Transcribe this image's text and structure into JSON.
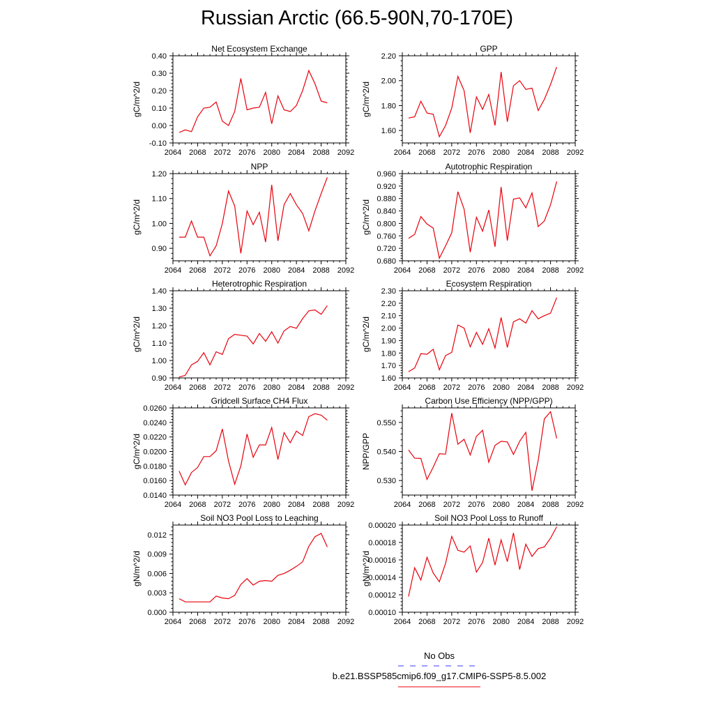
{
  "title": "Russian Arctic (66.5-90N,70-170E)",
  "colors": {
    "model": "#e8000b",
    "obs": "#3a3aff",
    "axis": "#000000"
  },
  "legend": {
    "obs_label": "No Obs",
    "model_label": "b.e21.BSSP585cmip6.f09_g17.CMIP6-SSP5-8.5.002"
  },
  "chart_data": [
    {
      "type": "line",
      "title": "Net Ecosystem Exchange",
      "xlabel": "",
      "ylabel": "gC/m^2/d",
      "xlim": [
        2064,
        2092
      ],
      "xticks": [
        2064,
        2068,
        2072,
        2076,
        2080,
        2084,
        2088,
        2092
      ],
      "xtick_labels": [
        "2064",
        "2068",
        "2072",
        "2076",
        "2080",
        "2084",
        "2088",
        "2092"
      ],
      "ylim": [
        -0.1,
        0.4
      ],
      "yticks": [
        -0.1,
        0.0,
        0.1,
        0.2,
        0.3,
        0.4
      ],
      "ytick_labels": [
        "-0.10",
        "0.00",
        "0.10",
        "0.20",
        "0.30",
        "0.40"
      ],
      "x": [
        2065,
        2066,
        2067,
        2068,
        2069,
        2070,
        2071,
        2072,
        2073,
        2074,
        2075,
        2076,
        2077,
        2078,
        2079,
        2080,
        2081,
        2082,
        2083,
        2084,
        2085,
        2086,
        2087,
        2088,
        2089
      ],
      "y": [
        -0.04,
        -0.025,
        -0.035,
        0.05,
        0.1,
        0.105,
        0.135,
        0.025,
        0.0,
        0.08,
        0.27,
        0.09,
        0.1,
        0.105,
        0.19,
        0.01,
        0.17,
        0.09,
        0.08,
        0.115,
        0.2,
        0.315,
        0.24,
        0.14,
        0.13
      ]
    },
    {
      "type": "line",
      "title": "GPP",
      "xlabel": "",
      "ylabel": "gC/m^2/d",
      "xlim": [
        2064,
        2092
      ],
      "xticks": [
        2064,
        2068,
        2072,
        2076,
        2080,
        2084,
        2088,
        2092
      ],
      "xtick_labels": [
        "2064",
        "2068",
        "2072",
        "2076",
        "2080",
        "2084",
        "2088",
        "2092"
      ],
      "ylim": [
        1.5,
        2.2
      ],
      "yticks": [
        1.6,
        1.8,
        2.0,
        2.2
      ],
      "ytick_labels": [
        "1.60",
        "1.80",
        "2.00",
        "2.20"
      ],
      "x": [
        2065,
        2066,
        2067,
        2068,
        2069,
        2070,
        2071,
        2072,
        2073,
        2074,
        2075,
        2076,
        2077,
        2078,
        2079,
        2080,
        2081,
        2082,
        2083,
        2084,
        2085,
        2086,
        2087,
        2088,
        2089
      ],
      "y": [
        1.7,
        1.71,
        1.835,
        1.74,
        1.73,
        1.55,
        1.64,
        1.78,
        2.035,
        1.92,
        1.58,
        1.87,
        1.77,
        1.89,
        1.64,
        2.07,
        1.67,
        1.96,
        2.0,
        1.93,
        1.94,
        1.76,
        1.85,
        1.97,
        2.11
      ]
    },
    {
      "type": "line",
      "title": "NPP",
      "xlabel": "",
      "ylabel": "gC/m^2/d",
      "xlim": [
        2064,
        2092
      ],
      "xticks": [
        2064,
        2068,
        2072,
        2076,
        2080,
        2084,
        2088,
        2092
      ],
      "xtick_labels": [
        "2064",
        "2068",
        "2072",
        "2076",
        "2080",
        "2084",
        "2088",
        "2092"
      ],
      "ylim": [
        0.85,
        1.2
      ],
      "yticks": [
        0.9,
        1.0,
        1.1,
        1.2
      ],
      "ytick_labels": [
        "0.90",
        "1.00",
        "1.10",
        "1.20"
      ],
      "x": [
        2065,
        2066,
        2067,
        2068,
        2069,
        2070,
        2071,
        2072,
        2073,
        2074,
        2075,
        2076,
        2077,
        2078,
        2079,
        2080,
        2081,
        2082,
        2083,
        2084,
        2085,
        2086,
        2087,
        2088,
        2089
      ],
      "y": [
        0.945,
        0.945,
        1.01,
        0.945,
        0.945,
        0.87,
        0.91,
        1.0,
        1.13,
        1.07,
        0.88,
        1.05,
        0.995,
        1.045,
        0.925,
        1.155,
        0.93,
        1.075,
        1.12,
        1.075,
        1.04,
        0.97,
        1.05,
        1.12,
        1.185
      ]
    },
    {
      "type": "line",
      "title": "Autotrophic Respiration",
      "xlabel": "",
      "ylabel": "gC/m^2/d",
      "xlim": [
        2064,
        2092
      ],
      "xticks": [
        2064,
        2068,
        2072,
        2076,
        2080,
        2084,
        2088,
        2092
      ],
      "xtick_labels": [
        "2064",
        "2068",
        "2072",
        "2076",
        "2080",
        "2084",
        "2088",
        "2092"
      ],
      "ylim": [
        0.68,
        0.96
      ],
      "yticks": [
        0.68,
        0.72,
        0.76,
        0.8,
        0.84,
        0.88,
        0.92,
        0.96
      ],
      "ytick_labels": [
        "0.680",
        "0.720",
        "0.760",
        "0.800",
        "0.840",
        "0.880",
        "0.920",
        "0.960"
      ],
      "x": [
        2065,
        2066,
        2067,
        2068,
        2069,
        2070,
        2071,
        2072,
        2073,
        2074,
        2075,
        2076,
        2077,
        2078,
        2079,
        2080,
        2081,
        2082,
        2083,
        2084,
        2085,
        2086,
        2087,
        2088,
        2089
      ],
      "y": [
        0.752,
        0.765,
        0.822,
        0.798,
        0.785,
        0.688,
        0.728,
        0.77,
        0.902,
        0.846,
        0.708,
        0.82,
        0.775,
        0.843,
        0.725,
        0.917,
        0.745,
        0.878,
        0.882,
        0.85,
        0.898,
        0.79,
        0.808,
        0.86,
        0.935
      ]
    },
    {
      "type": "line",
      "title": "Heterotrophic Respiration",
      "xlabel": "",
      "ylabel": "gC/m^2/d",
      "xlim": [
        2064,
        2092
      ],
      "xticks": [
        2064,
        2068,
        2072,
        2076,
        2080,
        2084,
        2088,
        2092
      ],
      "xtick_labels": [
        "2064",
        "2068",
        "2072",
        "2076",
        "2080",
        "2084",
        "2088",
        "2092"
      ],
      "ylim": [
        0.9,
        1.4
      ],
      "yticks": [
        0.9,
        1.0,
        1.1,
        1.2,
        1.3,
        1.4
      ],
      "ytick_labels": [
        "0.90",
        "1.00",
        "1.10",
        "1.20",
        "1.30",
        "1.40"
      ],
      "x": [
        2065,
        2066,
        2067,
        2068,
        2069,
        2070,
        2071,
        2072,
        2073,
        2074,
        2075,
        2076,
        2077,
        2078,
        2079,
        2080,
        2081,
        2082,
        2083,
        2084,
        2085,
        2086,
        2087,
        2088,
        2089
      ],
      "y": [
        0.905,
        0.915,
        0.975,
        0.995,
        1.045,
        0.975,
        1.05,
        1.035,
        1.125,
        1.15,
        1.145,
        1.14,
        1.095,
        1.155,
        1.11,
        1.165,
        1.1,
        1.17,
        1.195,
        1.185,
        1.24,
        1.285,
        1.29,
        1.265,
        1.315
      ]
    },
    {
      "type": "line",
      "title": "Ecosystem Respiration",
      "xlabel": "",
      "ylabel": "gC/m^2/d",
      "xlim": [
        2064,
        2092
      ],
      "xticks": [
        2064,
        2068,
        2072,
        2076,
        2080,
        2084,
        2088,
        2092
      ],
      "xtick_labels": [
        "2064",
        "2068",
        "2072",
        "2076",
        "2080",
        "2084",
        "2088",
        "2092"
      ],
      "ylim": [
        1.6,
        2.3
      ],
      "yticks": [
        1.6,
        1.7,
        1.8,
        1.9,
        2.0,
        2.1,
        2.2,
        2.3
      ],
      "ytick_labels": [
        "1.60",
        "1.70",
        "1.80",
        "1.90",
        "2.00",
        "2.10",
        "2.20",
        "2.30"
      ],
      "x": [
        2065,
        2066,
        2067,
        2068,
        2069,
        2070,
        2071,
        2072,
        2073,
        2074,
        2075,
        2076,
        2077,
        2078,
        2079,
        2080,
        2081,
        2082,
        2083,
        2084,
        2085,
        2086,
        2087,
        2088,
        2089
      ],
      "y": [
        1.65,
        1.68,
        1.795,
        1.79,
        1.83,
        1.665,
        1.78,
        1.805,
        2.025,
        2.0,
        1.85,
        1.965,
        1.87,
        1.995,
        1.84,
        2.085,
        1.845,
        2.05,
        2.075,
        2.04,
        2.14,
        2.075,
        2.1,
        2.12,
        2.245
      ]
    },
    {
      "type": "line",
      "title": "Gridcell Surface CH4 Flux",
      "xlabel": "",
      "ylabel": "gC/m^2/d",
      "xlim": [
        2064,
        2092
      ],
      "xticks": [
        2064,
        2068,
        2072,
        2076,
        2080,
        2084,
        2088,
        2092
      ],
      "xtick_labels": [
        "2064",
        "2068",
        "2072",
        "2076",
        "2080",
        "2084",
        "2088",
        "2092"
      ],
      "ylim": [
        0.014,
        0.026
      ],
      "yticks": [
        0.014,
        0.016,
        0.018,
        0.02,
        0.022,
        0.024,
        0.026
      ],
      "ytick_labels": [
        "0.0140",
        "0.0160",
        "0.0180",
        "0.0200",
        "0.0220",
        "0.0240",
        "0.0260"
      ],
      "x": [
        2065,
        2066,
        2067,
        2068,
        2069,
        2070,
        2071,
        2072,
        2073,
        2074,
        2075,
        2076,
        2077,
        2078,
        2079,
        2080,
        2081,
        2082,
        2083,
        2084,
        2085,
        2086,
        2087,
        2088,
        2089
      ],
      "y": [
        0.0173,
        0.0154,
        0.0171,
        0.0178,
        0.0193,
        0.0193,
        0.0201,
        0.0231,
        0.0187,
        0.0155,
        0.018,
        0.0224,
        0.0192,
        0.0209,
        0.0209,
        0.0233,
        0.0189,
        0.0226,
        0.0212,
        0.0228,
        0.0222,
        0.0248,
        0.0252,
        0.025,
        0.0243
      ]
    },
    {
      "type": "line",
      "title": "Carbon Use Efficiency (NPP/GPP)",
      "xlabel": "",
      "ylabel": "NPP/GPP",
      "xlim": [
        2064,
        2092
      ],
      "xticks": [
        2064,
        2068,
        2072,
        2076,
        2080,
        2084,
        2088,
        2092
      ],
      "xtick_labels": [
        "2064",
        "2068",
        "2072",
        "2076",
        "2080",
        "2084",
        "2088",
        "2092"
      ],
      "ylim": [
        0.525,
        0.555
      ],
      "yticks": [
        0.53,
        0.54,
        0.55
      ],
      "ytick_labels": [
        "0.530",
        "0.540",
        "0.550"
      ],
      "x": [
        2065,
        2066,
        2067,
        2068,
        2069,
        2070,
        2071,
        2072,
        2073,
        2074,
        2075,
        2076,
        2077,
        2078,
        2079,
        2080,
        2081,
        2082,
        2083,
        2084,
        2085,
        2086,
        2087,
        2088,
        2089
      ],
      "y": [
        0.5405,
        0.5377,
        0.5376,
        0.5304,
        0.5346,
        0.5392,
        0.5391,
        0.5532,
        0.5425,
        0.5442,
        0.5388,
        0.5452,
        0.5473,
        0.5363,
        0.5421,
        0.5435,
        0.5433,
        0.539,
        0.5435,
        0.5466,
        0.5265,
        0.537,
        0.5512,
        0.5537,
        0.5445
      ]
    },
    {
      "type": "line",
      "title": "Soil NO3 Pool Loss to Leaching",
      "xlabel": "",
      "ylabel": "gN/m^2/d",
      "xlim": [
        2064,
        2092
      ],
      "xticks": [
        2064,
        2068,
        2072,
        2076,
        2080,
        2084,
        2088,
        2092
      ],
      "xtick_labels": [
        "2064",
        "2068",
        "2072",
        "2076",
        "2080",
        "2084",
        "2088",
        "2092"
      ],
      "ylim": [
        0.0,
        0.0135
      ],
      "yticks": [
        0.0,
        0.003,
        0.006,
        0.009,
        0.012
      ],
      "ytick_labels": [
        "0.000",
        "0.003",
        "0.006",
        "0.009",
        "0.012"
      ],
      "x": [
        2065,
        2066,
        2067,
        2068,
        2069,
        2070,
        2071,
        2072,
        2073,
        2074,
        2075,
        2076,
        2077,
        2078,
        2079,
        2080,
        2081,
        2082,
        2083,
        2084,
        2085,
        2086,
        2087,
        2088,
        2089
      ],
      "y": [
        0.0021,
        0.0016,
        0.0016,
        0.0016,
        0.0016,
        0.0016,
        0.0025,
        0.0022,
        0.0021,
        0.0026,
        0.0043,
        0.0052,
        0.0042,
        0.0048,
        0.0049,
        0.0048,
        0.0057,
        0.006,
        0.0065,
        0.0071,
        0.0078,
        0.0102,
        0.0117,
        0.0122,
        0.0101
      ]
    },
    {
      "type": "line",
      "title": "Soil NO3 Pool Loss to Runoff",
      "xlabel": "",
      "ylabel": "gN/m^2/d",
      "xlim": [
        2064,
        2092
      ],
      "xticks": [
        2064,
        2068,
        2072,
        2076,
        2080,
        2084,
        2088,
        2092
      ],
      "xtick_labels": [
        "2064",
        "2068",
        "2072",
        "2076",
        "2080",
        "2084",
        "2088",
        "2092"
      ],
      "ylim": [
        0.0001,
        0.0002
      ],
      "yticks": [
        0.0001,
        0.00012,
        0.00014,
        0.00016,
        0.00018,
        0.0002
      ],
      "ytick_labels": [
        "0.00010",
        "0.00012",
        "0.00014",
        "0.00016",
        "0.00018",
        "0.00020"
      ],
      "x": [
        2065,
        2066,
        2067,
        2068,
        2069,
        2070,
        2071,
        2072,
        2073,
        2074,
        2075,
        2076,
        2077,
        2078,
        2079,
        2080,
        2081,
        2082,
        2083,
        2084,
        2085,
        2086,
        2087,
        2088,
        2089
      ],
      "y": [
        0.000118,
        0.000151,
        0.000137,
        0.000163,
        0.000145,
        0.000135,
        0.000156,
        0.000187,
        0.000171,
        0.000169,
        0.000176,
        0.000146,
        0.000157,
        0.000185,
        0.000154,
        0.000183,
        0.000158,
        0.000191,
        0.000149,
        0.000178,
        0.000164,
        0.000173,
        0.000175,
        0.000185,
        0.000198
      ]
    }
  ]
}
